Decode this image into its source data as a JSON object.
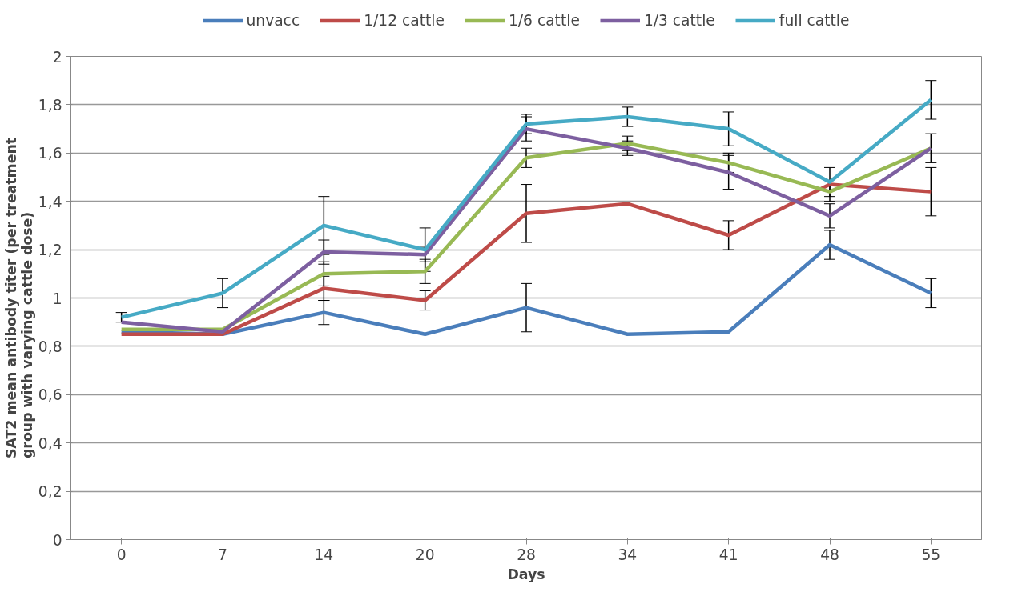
{
  "chart_data": {
    "type": "line",
    "xlabel": "Days",
    "ylabel": "SAT2 mean antibody titer (per treatment group with varying cattle dose)",
    "categories": [
      "0",
      "7",
      "14",
      "20",
      "28",
      "34",
      "41",
      "48",
      "55"
    ],
    "series": [
      {
        "name": "unvacc",
        "color": "#4a7ebb",
        "values": [
          0.86,
          0.85,
          0.94,
          0.85,
          0.96,
          0.85,
          0.86,
          1.22,
          1.02
        ],
        "errors": [
          null,
          null,
          0.05,
          null,
          0.1,
          null,
          null,
          0.06,
          0.06
        ]
      },
      {
        "name": "1/12 cattle",
        "color": "#be4b48",
        "values": [
          0.85,
          0.85,
          1.04,
          0.99,
          1.35,
          1.39,
          1.26,
          1.47,
          1.44
        ],
        "errors": [
          null,
          null,
          0.05,
          0.04,
          0.12,
          null,
          0.06,
          null,
          0.1
        ]
      },
      {
        "name": "1/6 cattle",
        "color": "#98b954",
        "values": [
          0.87,
          0.87,
          1.1,
          1.11,
          1.58,
          1.64,
          1.56,
          1.44,
          1.62
        ],
        "errors": [
          null,
          null,
          0.05,
          0.05,
          0.04,
          0.03,
          0.04,
          0.04,
          0.06
        ]
      },
      {
        "name": "1/3 cattle",
        "color": "#7d5fa0",
        "values": [
          0.9,
          0.86,
          1.19,
          1.18,
          1.7,
          1.62,
          1.52,
          1.34,
          1.62
        ],
        "errors": [
          null,
          null,
          0.05,
          0.03,
          0.05,
          0.03,
          0.07,
          0.05,
          null
        ]
      },
      {
        "name": "full cattle",
        "color": "#46aac5",
        "values": [
          0.92,
          1.02,
          1.3,
          1.2,
          1.72,
          1.75,
          1.7,
          1.48,
          1.82
        ],
        "errors": [
          0.02,
          0.06,
          0.12,
          0.09,
          0.04,
          0.04,
          0.07,
          0.06,
          0.08
        ]
      }
    ],
    "ylim": [
      0,
      2
    ],
    "yticks": [
      0,
      {
        "value": 0.2,
        "label": "0,2"
      },
      {
        "value": 0.4,
        "label": "0,4"
      },
      {
        "value": 0.6,
        "label": "0,6"
      },
      {
        "value": 0.8,
        "label": "0,8"
      },
      1,
      {
        "value": 1.2,
        "label": "1,2"
      },
      {
        "value": 1.4,
        "label": "1,4"
      },
      {
        "value": 1.6,
        "label": "1,6"
      },
      {
        "value": 1.8,
        "label": "1,8"
      },
      2
    ],
    "grid": "y",
    "legend": "top",
    "line_style": "solid",
    "marker": "none"
  }
}
